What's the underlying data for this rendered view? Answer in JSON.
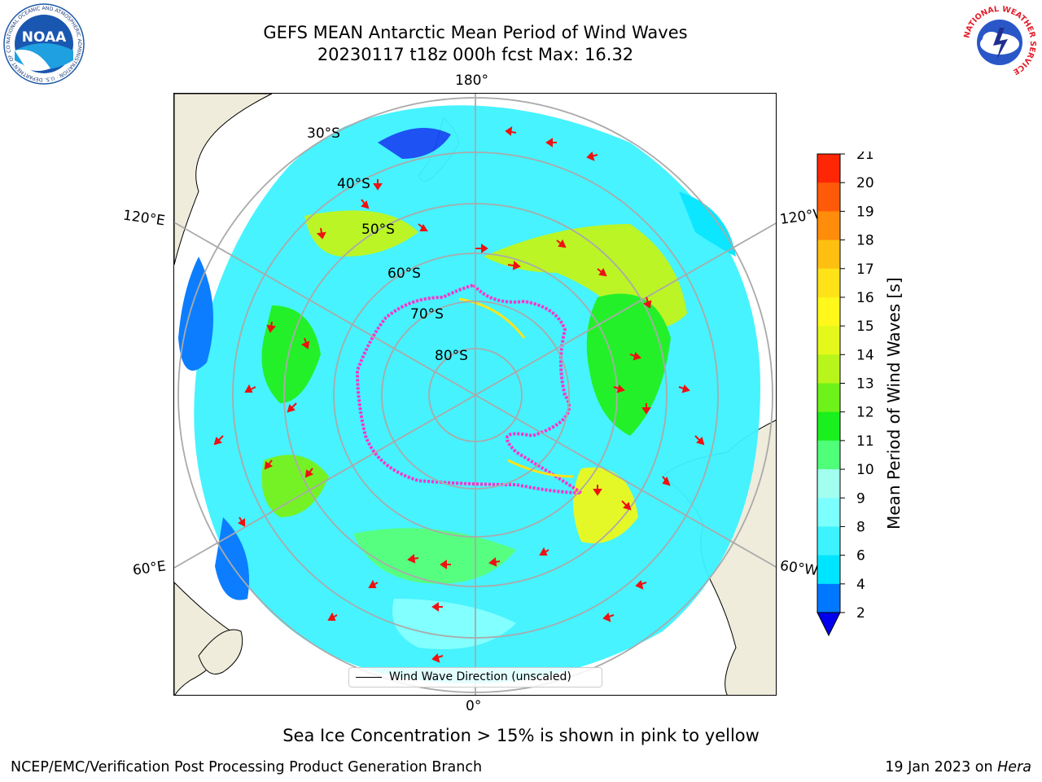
{
  "header": {
    "title_line1": "GEFS MEAN Antarctic Mean Period of Wind Waves",
    "title_line2": "20230117 t18z 000h fcst   Max: 16.32"
  },
  "map": {
    "projection": "south-polar-stereographic",
    "longitude_labels": {
      "top": "180°",
      "bottom": "0°",
      "upper_left": "120°E",
      "upper_right": "120°W",
      "lower_left": "60°E",
      "lower_right": "60°W"
    },
    "latitude_labels": [
      "30°S",
      "40°S",
      "50°S",
      "60°S",
      "70°S",
      "80°S"
    ],
    "colors": {
      "land": "#efecdc",
      "ocean_blank": "#ffffff",
      "arrow": "#ee1111",
      "ice": "#ff33cc",
      "grid": "#aaaaaa"
    }
  },
  "legend": {
    "label": "Wind Wave Direction (unscaled)"
  },
  "colorbar": {
    "label": "Mean Period of Wind Waves [s]",
    "ticks": [
      "2",
      "4",
      "6",
      "8",
      "9",
      "10",
      "11",
      "12",
      "13",
      "14",
      "15",
      "16",
      "17",
      "18",
      "19",
      "20",
      "21"
    ],
    "colors": [
      "#0077ff",
      "#00e5ff",
      "#3df3ff",
      "#7cffff",
      "#a2fff0",
      "#4fff7a",
      "#19f01e",
      "#6ef21a",
      "#b8f51a",
      "#e4f81c",
      "#fff81a",
      "#ffe318",
      "#ffbf10",
      "#ff8c0a",
      "#ff5a08",
      "#ff2606"
    ],
    "extend_color": "#0000ee"
  },
  "note": "Sea Ice Concentration > 15% is shown in pink to yellow",
  "footer": {
    "left": "NCEP/EMC/Verification Post Processing Product Generation Branch",
    "right_prefix": "19 Jan 2023 on ",
    "right_italic": "Hera"
  },
  "logos": {
    "noaa": "NOAA",
    "noaa_ring": "NATIONAL OCEANIC AND ATMOSPHERIC ADMINISTRATION · U.S. DEPARTMENT OF COMMERCE ·",
    "nws_ring": "NATIONAL WEATHER SERVICE"
  }
}
